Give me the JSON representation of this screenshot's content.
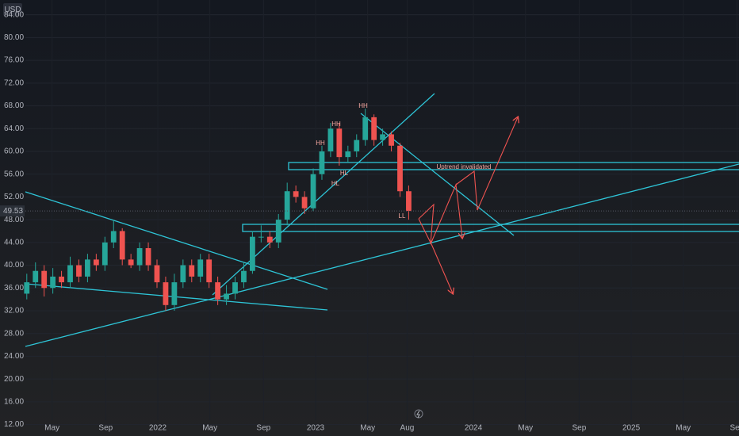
{
  "chart_data": {
    "type": "candlestick",
    "currency": "USD",
    "colors": {
      "up": "#26a69a",
      "down": "#ef5350"
    },
    "grid": true,
    "last_price": 49.53,
    "x": [
      2021.17,
      2021.225,
      2021.28,
      2021.335,
      2021.39,
      2021.445,
      2021.5,
      2021.555,
      2021.61,
      2021.665,
      2021.72,
      2021.775,
      2021.83,
      2021.885,
      2021.94,
      2021.995,
      2022.05,
      2022.105,
      2022.16,
      2022.215,
      2022.27,
      2022.325,
      2022.38,
      2022.435,
      2022.49,
      2022.545,
      2022.6,
      2022.655,
      2022.71,
      2022.765,
      2022.82,
      2022.875,
      2022.93,
      2022.985,
      2023.04,
      2023.095,
      2023.15,
      2023.205,
      2023.26,
      2023.315,
      2023.37,
      2023.425,
      2023.48,
      2023.535,
      2023.59
    ],
    "open": [
      35,
      37,
      39,
      36,
      38,
      37,
      40,
      38,
      41,
      40,
      44,
      46,
      41,
      40,
      43,
      40,
      37,
      33,
      37,
      40,
      38,
      41,
      37,
      34,
      35,
      37,
      39,
      45,
      45,
      44,
      48,
      53,
      52,
      50,
      56,
      60,
      64,
      59,
      60,
      62,
      66,
      62,
      63,
      61,
      53
    ],
    "high": [
      38.5,
      40.5,
      40,
      39.5,
      39,
      41.5,
      41,
      42,
      42,
      45,
      48,
      46.5,
      42,
      44,
      44,
      41,
      38,
      38.5,
      41,
      41,
      42,
      42,
      38,
      36.5,
      38,
      40.5,
      46,
      47,
      46,
      49,
      54.5,
      54,
      53,
      57,
      61,
      65,
      65,
      61,
      63,
      67.5,
      66.5,
      64,
      63.5,
      61.5,
      54
    ],
    "low": [
      34,
      36,
      34.5,
      35,
      36,
      36,
      37,
      37,
      39,
      39,
      43,
      40,
      39.5,
      39,
      39,
      36,
      32,
      32,
      36,
      37,
      37,
      36,
      33,
      33,
      34,
      36,
      38.5,
      44,
      43,
      43,
      47,
      51,
      49,
      49.5,
      55,
      59,
      57.5,
      58,
      59,
      61,
      61,
      61,
      60,
      52,
      48
    ],
    "close": [
      37,
      39,
      36,
      38,
      37,
      40,
      38,
      41,
      40,
      44,
      46,
      41,
      40,
      43,
      40,
      37,
      33,
      37,
      40,
      38,
      41,
      37,
      34,
      35,
      37,
      39,
      45,
      45,
      44,
      48,
      53,
      52,
      50,
      56,
      60,
      64,
      59,
      60,
      62,
      66,
      62,
      63,
      61,
      53,
      49.53
    ],
    "xlim": [
      2021.161,
      2025.683
    ],
    "ylim": [
      9.99,
      86.6
    ],
    "yticks": [
      {
        "value": 84,
        "label": "84.00"
      },
      {
        "value": 80,
        "label": "80.00"
      },
      {
        "value": 76,
        "label": "76.00"
      },
      {
        "value": 72,
        "label": "72.00"
      },
      {
        "value": 68,
        "label": "68.00"
      },
      {
        "value": 64,
        "label": "64.00"
      },
      {
        "value": 60,
        "label": "60.00"
      },
      {
        "value": 56,
        "label": "56.00"
      },
      {
        "value": 52,
        "label": "52.00"
      },
      {
        "value": 48,
        "label": "48.00"
      },
      {
        "value": 44,
        "label": "44.00"
      },
      {
        "value": 40,
        "label": "40.00"
      },
      {
        "value": 36,
        "label": "36.00"
      },
      {
        "value": 32,
        "label": "32.00"
      },
      {
        "value": 28,
        "label": "28.00"
      },
      {
        "value": 24,
        "label": "24.00"
      },
      {
        "value": 20,
        "label": "20.00"
      },
      {
        "value": 16,
        "label": "16.00"
      },
      {
        "value": 12,
        "label": "12.00"
      }
    ],
    "xticks": [
      {
        "value": 2021.33,
        "label": "May"
      },
      {
        "value": 2021.67,
        "label": "Sep"
      },
      {
        "value": 2022,
        "label": "2022"
      },
      {
        "value": 2022.33,
        "label": "May"
      },
      {
        "value": 2022.67,
        "label": "Sep"
      },
      {
        "value": 2023,
        "label": "2023"
      },
      {
        "value": 2023.33,
        "label": "May"
      },
      {
        "value": 2023.58,
        "label": "Aug"
      },
      {
        "value": 2024,
        "label": "2024"
      },
      {
        "value": 2024.33,
        "label": "May"
      },
      {
        "value": 2024.67,
        "label": "Sep"
      },
      {
        "value": 2025,
        "label": "2025"
      },
      {
        "value": 2025.33,
        "label": "May"
      },
      {
        "value": 2025.67,
        "label": "Sep"
      }
    ],
    "annotations": [
      "HH",
      "HH",
      "HH",
      "HL",
      "HL",
      "LL",
      "Uptrend invalidated"
    ]
  }
}
